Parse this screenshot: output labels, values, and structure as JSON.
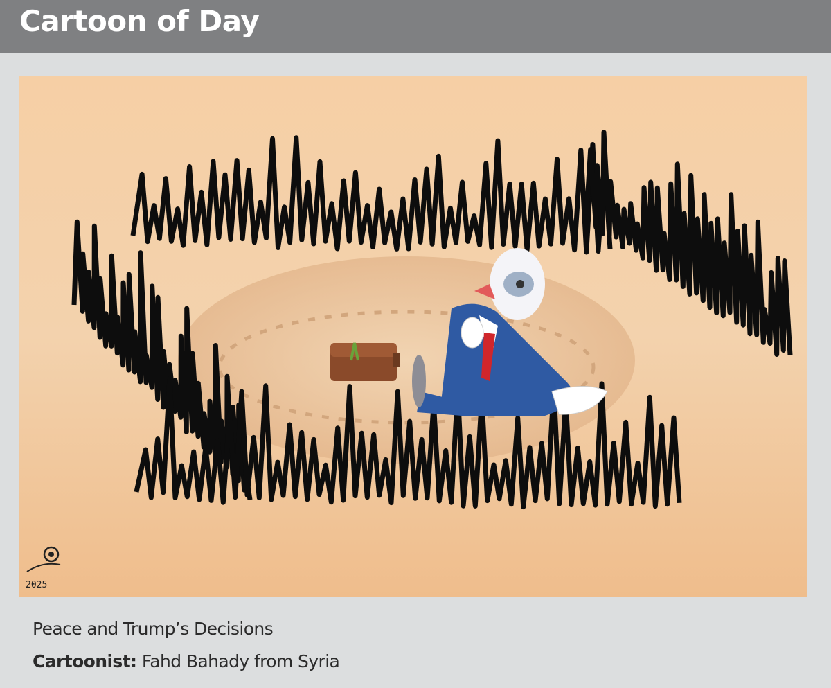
{
  "header": {
    "title": "Cartoon of Day"
  },
  "cartoon": {
    "signature_year": "2025",
    "colors": {
      "background": "#f3c79a",
      "ink": "#0d0d0d",
      "suit": "#2f5aa3",
      "tie": "#d0262b",
      "briefcase": "#8a4a2a"
    }
  },
  "caption": {
    "title": "Peace and Trump’s Decisions",
    "credit_label": "Cartoonist:",
    "credit_value": "Fahd Bahady from Syria"
  }
}
